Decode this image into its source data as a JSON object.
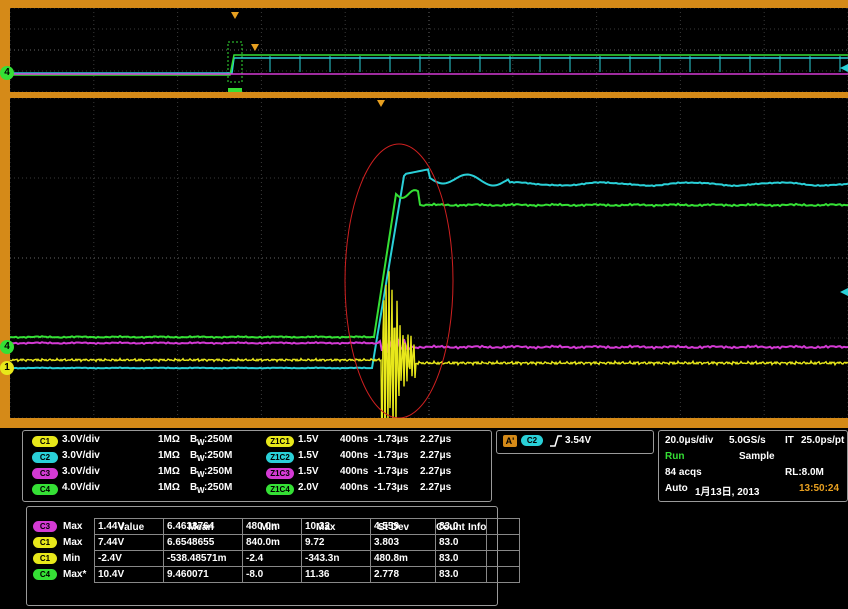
{
  "colors": {
    "ch1": "#e8e81a",
    "ch2": "#2ad0d8",
    "ch3": "#d43ad4",
    "ch4": "#35e035",
    "frame": "#d58a18",
    "ellipse": "#d02020"
  },
  "markers": {
    "ch4_top": "4",
    "ch4_main": "4",
    "ch1_main": "1"
  },
  "channels": [
    {
      "id": "C1",
      "vdiv": "3.0V/div",
      "coupling": "1MΩ",
      "bw": "B",
      "bw_sub": "W",
      "bw_val": ":250M",
      "zoom": "Z1C1",
      "zoom_v": "1.5V",
      "zoom_t": "400ns",
      "zoom_min": "-1.73μs",
      "zoom_max": "2.27μs"
    },
    {
      "id": "C2",
      "vdiv": "3.0V/div",
      "coupling": "1MΩ",
      "bw": "B",
      "bw_sub": "W",
      "bw_val": ":250M",
      "zoom": "Z1C2",
      "zoom_v": "1.5V",
      "zoom_t": "400ns",
      "zoom_min": "-1.73μs",
      "zoom_max": "2.27μs"
    },
    {
      "id": "C3",
      "vdiv": "3.0V/div",
      "coupling": "1MΩ",
      "bw": "B",
      "bw_sub": "W",
      "bw_val": ":250M",
      "zoom": "Z1C3",
      "zoom_v": "1.5V",
      "zoom_t": "400ns",
      "zoom_min": "-1.73μs",
      "zoom_max": "2.27μs"
    },
    {
      "id": "C4",
      "vdiv": "4.0V/div",
      "coupling": "1MΩ",
      "bw": "B",
      "bw_sub": "W",
      "bw_val": ":250M",
      "zoom": "Z1C4",
      "zoom_v": "2.0V",
      "zoom_t": "400ns",
      "zoom_min": "-1.73μs",
      "zoom_max": "2.27μs"
    }
  ],
  "trigger": {
    "mode": "A'",
    "source": "C2",
    "slope_icon": "rising-edge-icon",
    "level": "3.54V"
  },
  "acquisition": {
    "timebase": "20.0μs/div",
    "rate": "5.0GS/s",
    "it_label": "IT",
    "it_val": "25.0ps/pt",
    "state": "Run",
    "mode": "Sample",
    "acqs": "84 acqs",
    "rl": "RL:8.0M",
    "trigger_mode": "Auto",
    "date": "1月13日, 2013",
    "time": "13:50:24"
  },
  "measurements": {
    "headers": [
      "Value",
      "Mean",
      "Min",
      "Max",
      "St Dev",
      "Count",
      "Info"
    ],
    "rows": [
      {
        "src": "C3",
        "kind": "Max",
        "value": "1.44V",
        "mean": "6.4633764",
        "min": "480.0m",
        "max": "10.32",
        "stdev": "4.559",
        "count": "83.0",
        "info": ""
      },
      {
        "src": "C1",
        "kind": "Max",
        "value": "7.44V",
        "mean": "6.6548655",
        "min": "840.0m",
        "max": "9.72",
        "stdev": "3.803",
        "count": "83.0",
        "info": ""
      },
      {
        "src": "C1",
        "kind": "Min",
        "value": "-2.4V",
        "mean": "-538.48571m",
        "min": "-2.4",
        "max": "-343.3n",
        "stdev": "480.8m",
        "count": "83.0",
        "info": ""
      },
      {
        "src": "C4",
        "kind": "Max*",
        "value": "10.4V",
        "mean": "9.460071",
        "min": "-8.0",
        "max": "11.36",
        "stdev": "2.778",
        "count": "83.0",
        "info": ""
      }
    ]
  }
}
